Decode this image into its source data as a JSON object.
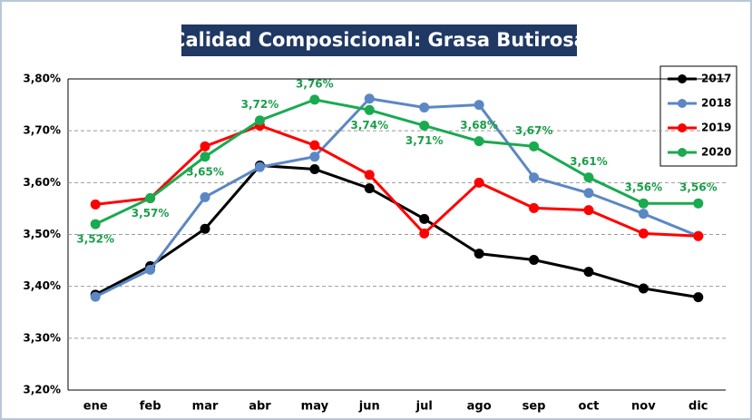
{
  "chart_data": {
    "type": "line",
    "title": "Calidad Composicional: Grasa Butirosa",
    "categories": [
      "ene",
      "feb",
      "mar",
      "abr",
      "may",
      "jun",
      "jul",
      "ago",
      "sep",
      "oct",
      "nov",
      "dic"
    ],
    "ylim": [
      3.2,
      3.8
    ],
    "yticks": [
      {
        "value": 3.2,
        "label": "3,20%"
      },
      {
        "value": 3.3,
        "label": "3,30%"
      },
      {
        "value": 3.4,
        "label": "3,40%"
      },
      {
        "value": 3.5,
        "label": "3,50%"
      },
      {
        "value": 3.6,
        "label": "3,60%"
      },
      {
        "value": 3.7,
        "label": "3,70%"
      },
      {
        "value": 3.8,
        "label": "3,80%"
      }
    ],
    "grid": true,
    "legend": "upper right",
    "series": [
      {
        "name": "2017",
        "color": "#000000",
        "values": [
          3.384,
          3.439,
          3.511,
          3.633,
          3.626,
          3.589,
          3.53,
          3.463,
          3.451,
          3.428,
          3.396,
          3.379
        ]
      },
      {
        "name": "2018",
        "color": "#5b87c5",
        "values": [
          3.38,
          3.432,
          3.572,
          3.63,
          3.65,
          3.762,
          3.745,
          3.75,
          3.61,
          3.58,
          3.54,
          3.497
        ]
      },
      {
        "name": "2019",
        "color": "#ff0000",
        "values": [
          3.558,
          3.57,
          3.67,
          3.71,
          3.672,
          3.615,
          3.502,
          3.6,
          3.551,
          3.547,
          3.502,
          3.497
        ]
      },
      {
        "name": "2020",
        "color": "#1aaa50",
        "values": [
          3.52,
          3.57,
          3.65,
          3.72,
          3.76,
          3.74,
          3.71,
          3.68,
          3.67,
          3.61,
          3.56,
          3.56
        ],
        "value_labels": [
          "3,52%",
          "3,57%",
          "3,65%",
          "3,72%",
          "3,76%",
          "3,74%",
          "3,71%",
          "3,68%",
          "3,67%",
          "3,61%",
          "3,56%",
          "3,56%"
        ]
      }
    ]
  }
}
